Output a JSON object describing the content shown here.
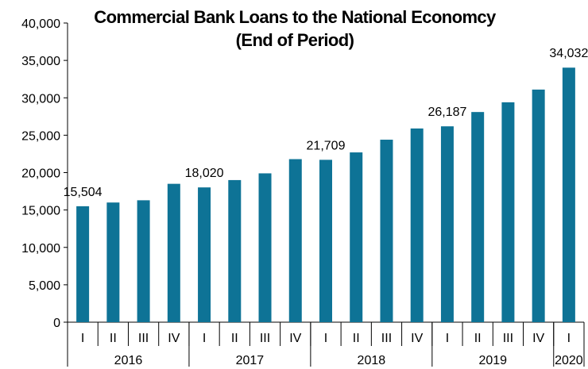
{
  "chart_data": {
    "type": "bar",
    "title": "Commercial Bank Loans to the National Economcy",
    "subtitle": "(End of Period)",
    "xlabel": "",
    "ylabel": "",
    "ylim": [
      0,
      40000
    ],
    "ytick_labels": [
      "0",
      "5,000",
      "10,000",
      "15,000",
      "20,000",
      "25,000",
      "30,000",
      "35,000",
      "40,000"
    ],
    "grid": false,
    "bar_color": "#0E7396",
    "categories": [
      "I",
      "II",
      "III",
      "IV",
      "I",
      "II",
      "III",
      "IV",
      "I",
      "II",
      "III",
      "IV",
      "I",
      "II",
      "III",
      "IV",
      "I"
    ],
    "years": [
      {
        "label": "2016",
        "quarters": 4
      },
      {
        "label": "2017",
        "quarters": 4
      },
      {
        "label": "2018",
        "quarters": 4
      },
      {
        "label": "2019",
        "quarters": 4
      },
      {
        "label": "2020",
        "quarters": 1
      }
    ],
    "values": [
      15504,
      16000,
      16300,
      18500,
      18020,
      19000,
      19900,
      21800,
      21709,
      22700,
      24400,
      25900,
      26187,
      28100,
      29400,
      31100,
      34032
    ],
    "data_labels": [
      {
        "index": 0,
        "text": "15,504"
      },
      {
        "index": 4,
        "text": "18,020"
      },
      {
        "index": 8,
        "text": "21,709"
      },
      {
        "index": 12,
        "text": "26,187"
      },
      {
        "index": 16,
        "text": "34,032"
      }
    ]
  }
}
